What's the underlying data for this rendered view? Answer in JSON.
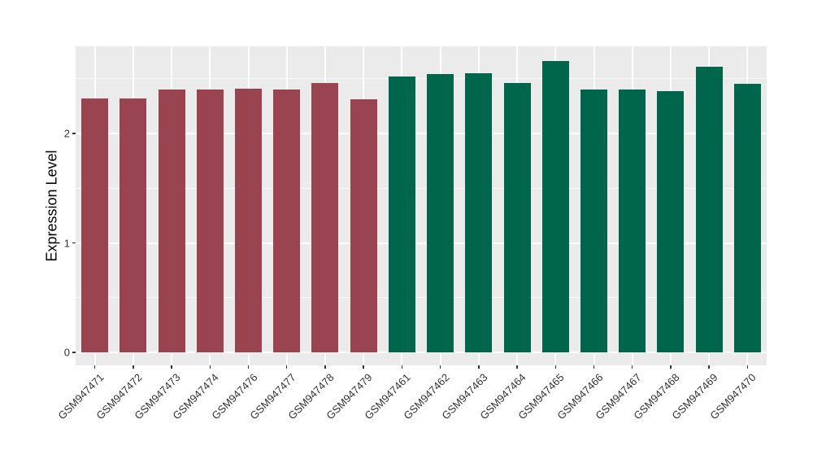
{
  "figure": {
    "background_color": "#ffffff",
    "panel_background_color": "#ebebeb",
    "gridline_color": "#ffffff",
    "axis_text_color": "#333333"
  },
  "chart_data": {
    "type": "bar",
    "title": "",
    "xlabel": "",
    "ylabel": "Expression Level",
    "categories": [
      "GSM947471",
      "GSM947472",
      "GSM947473",
      "GSM947474",
      "GSM947476",
      "GSM947477",
      "GSM947478",
      "GSM947479",
      "GSM947461",
      "GSM947462",
      "GSM947463",
      "GSM947464",
      "GSM947465",
      "GSM947466",
      "GSM947467",
      "GSM947468",
      "GSM947469",
      "GSM947470"
    ],
    "values": [
      2.32,
      2.32,
      2.4,
      2.4,
      2.41,
      2.4,
      2.46,
      2.31,
      2.52,
      2.54,
      2.55,
      2.46,
      2.66,
      2.4,
      2.4,
      2.39,
      2.61,
      2.45
    ],
    "bar_colors": [
      "#9b4451",
      "#9b4451",
      "#9b4451",
      "#9b4451",
      "#9b4451",
      "#9b4451",
      "#9b4451",
      "#9b4451",
      "#00664b",
      "#00664b",
      "#00664b",
      "#00664b",
      "#00664b",
      "#00664b",
      "#00664b",
      "#00664b",
      "#00664b",
      "#00664b"
    ],
    "groups": [
      {
        "name": "group-red",
        "color": "#9b4451",
        "count": 8
      },
      {
        "name": "group-green",
        "color": "#00664b",
        "count": 10
      }
    ],
    "y_ticks": [
      0,
      1,
      2
    ],
    "y_minor_ticks": [
      0.5,
      1.5,
      2.5
    ],
    "ylim": [
      0,
      2.79
    ],
    "grid": true,
    "legend": "none",
    "x_label_rotation_deg": 45
  }
}
